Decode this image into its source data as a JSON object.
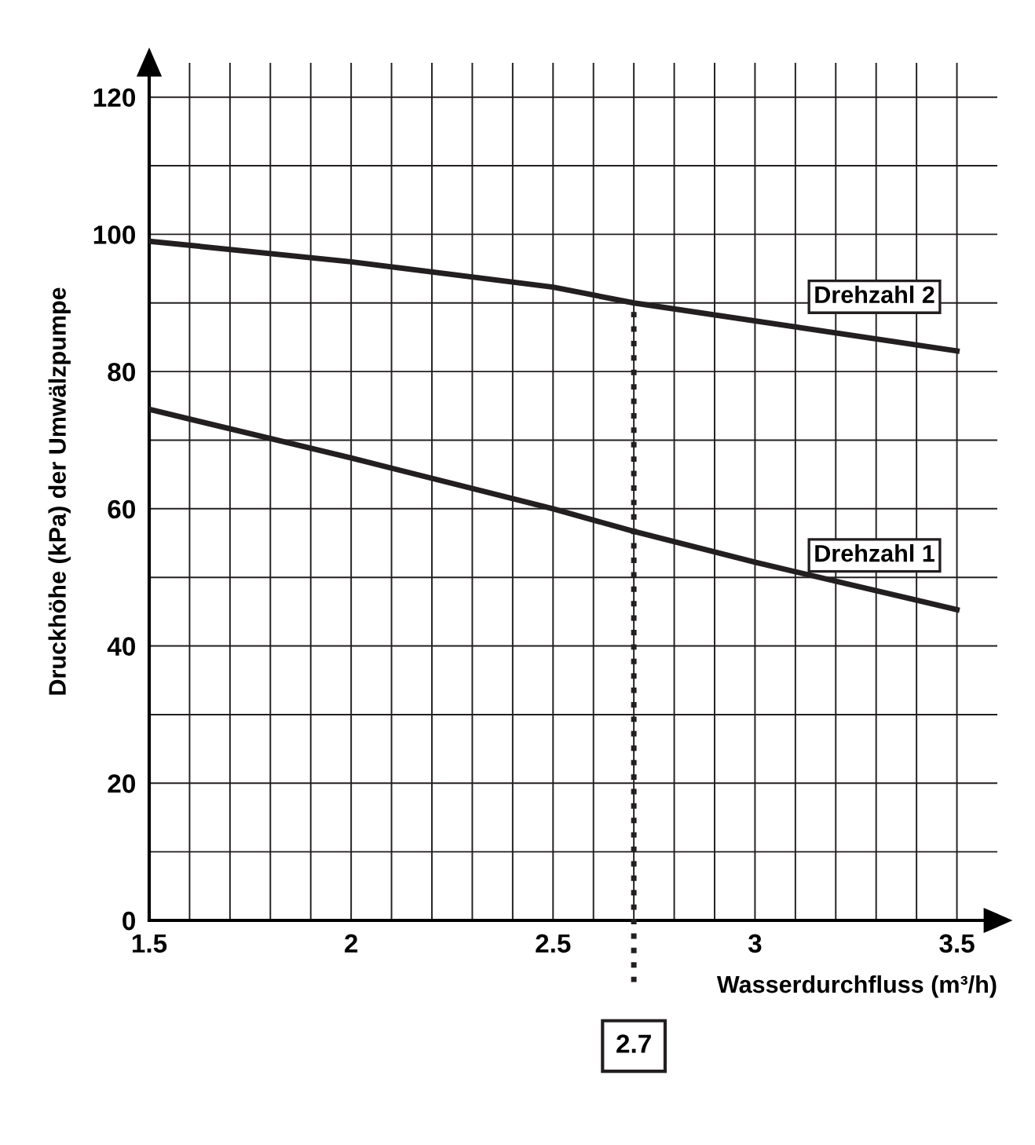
{
  "chart_data": {
    "type": "line",
    "xlabel": "Wasserdurchfluss (m³/h)",
    "ylabel": "Druckhöhe (kPa) der Umwälzpumpe",
    "series": [
      {
        "name": "Drehzahl 2",
        "color": "#231f20",
        "x": [
          1.5,
          2.0,
          2.5,
          2.7,
          3.5
        ],
        "values": [
          99,
          96,
          92.3,
          90,
          83
        ]
      },
      {
        "name": "Drehzahl 1",
        "color": "#231f20",
        "x": [
          1.5,
          2.0,
          2.5,
          2.7,
          3.0,
          3.5
        ],
        "values": [
          74.5,
          67.4,
          60,
          56.7,
          52.2,
          45.3
        ]
      }
    ],
    "xlim": [
      1.5,
      3.6
    ],
    "ylim": [
      0,
      125
    ],
    "xticks": [
      1.5,
      {
        "value": 1.6,
        "label": null
      },
      {
        "value": 1.7,
        "label": null
      },
      {
        "value": 1.8,
        "label": null
      },
      {
        "value": 1.9,
        "label": null
      },
      2,
      {
        "value": 2.1,
        "label": null
      },
      {
        "value": 2.2,
        "label": null
      },
      {
        "value": 2.3,
        "label": null
      },
      {
        "value": 2.4,
        "label": null
      },
      2.5,
      {
        "value": 2.6,
        "label": null
      },
      {
        "value": 2.7,
        "label": null
      },
      {
        "value": 2.8,
        "label": null
      },
      {
        "value": 2.9,
        "label": null
      },
      3,
      {
        "value": 3.1,
        "label": null
      },
      {
        "value": 3.2,
        "label": null
      },
      {
        "value": 3.3,
        "label": null
      },
      {
        "value": 3.4,
        "label": null
      },
      3.5
    ],
    "yticks": [
      0,
      {
        "value": 10,
        "label": null
      },
      20,
      {
        "value": 30,
        "label": null
      },
      40,
      {
        "value": 50,
        "label": null
      },
      60,
      {
        "value": 70,
        "label": null
      },
      80,
      {
        "value": 90,
        "label": null
      },
      100,
      {
        "value": 110,
        "label": null
      },
      120
    ],
    "grid": true,
    "marker": "none",
    "line_style": "solid",
    "legend": false,
    "ref_lines": [
      {
        "axis": "x",
        "value": 2.7,
        "label": "2.7",
        "line_style": "dotted",
        "color": "#231f20"
      }
    ]
  }
}
